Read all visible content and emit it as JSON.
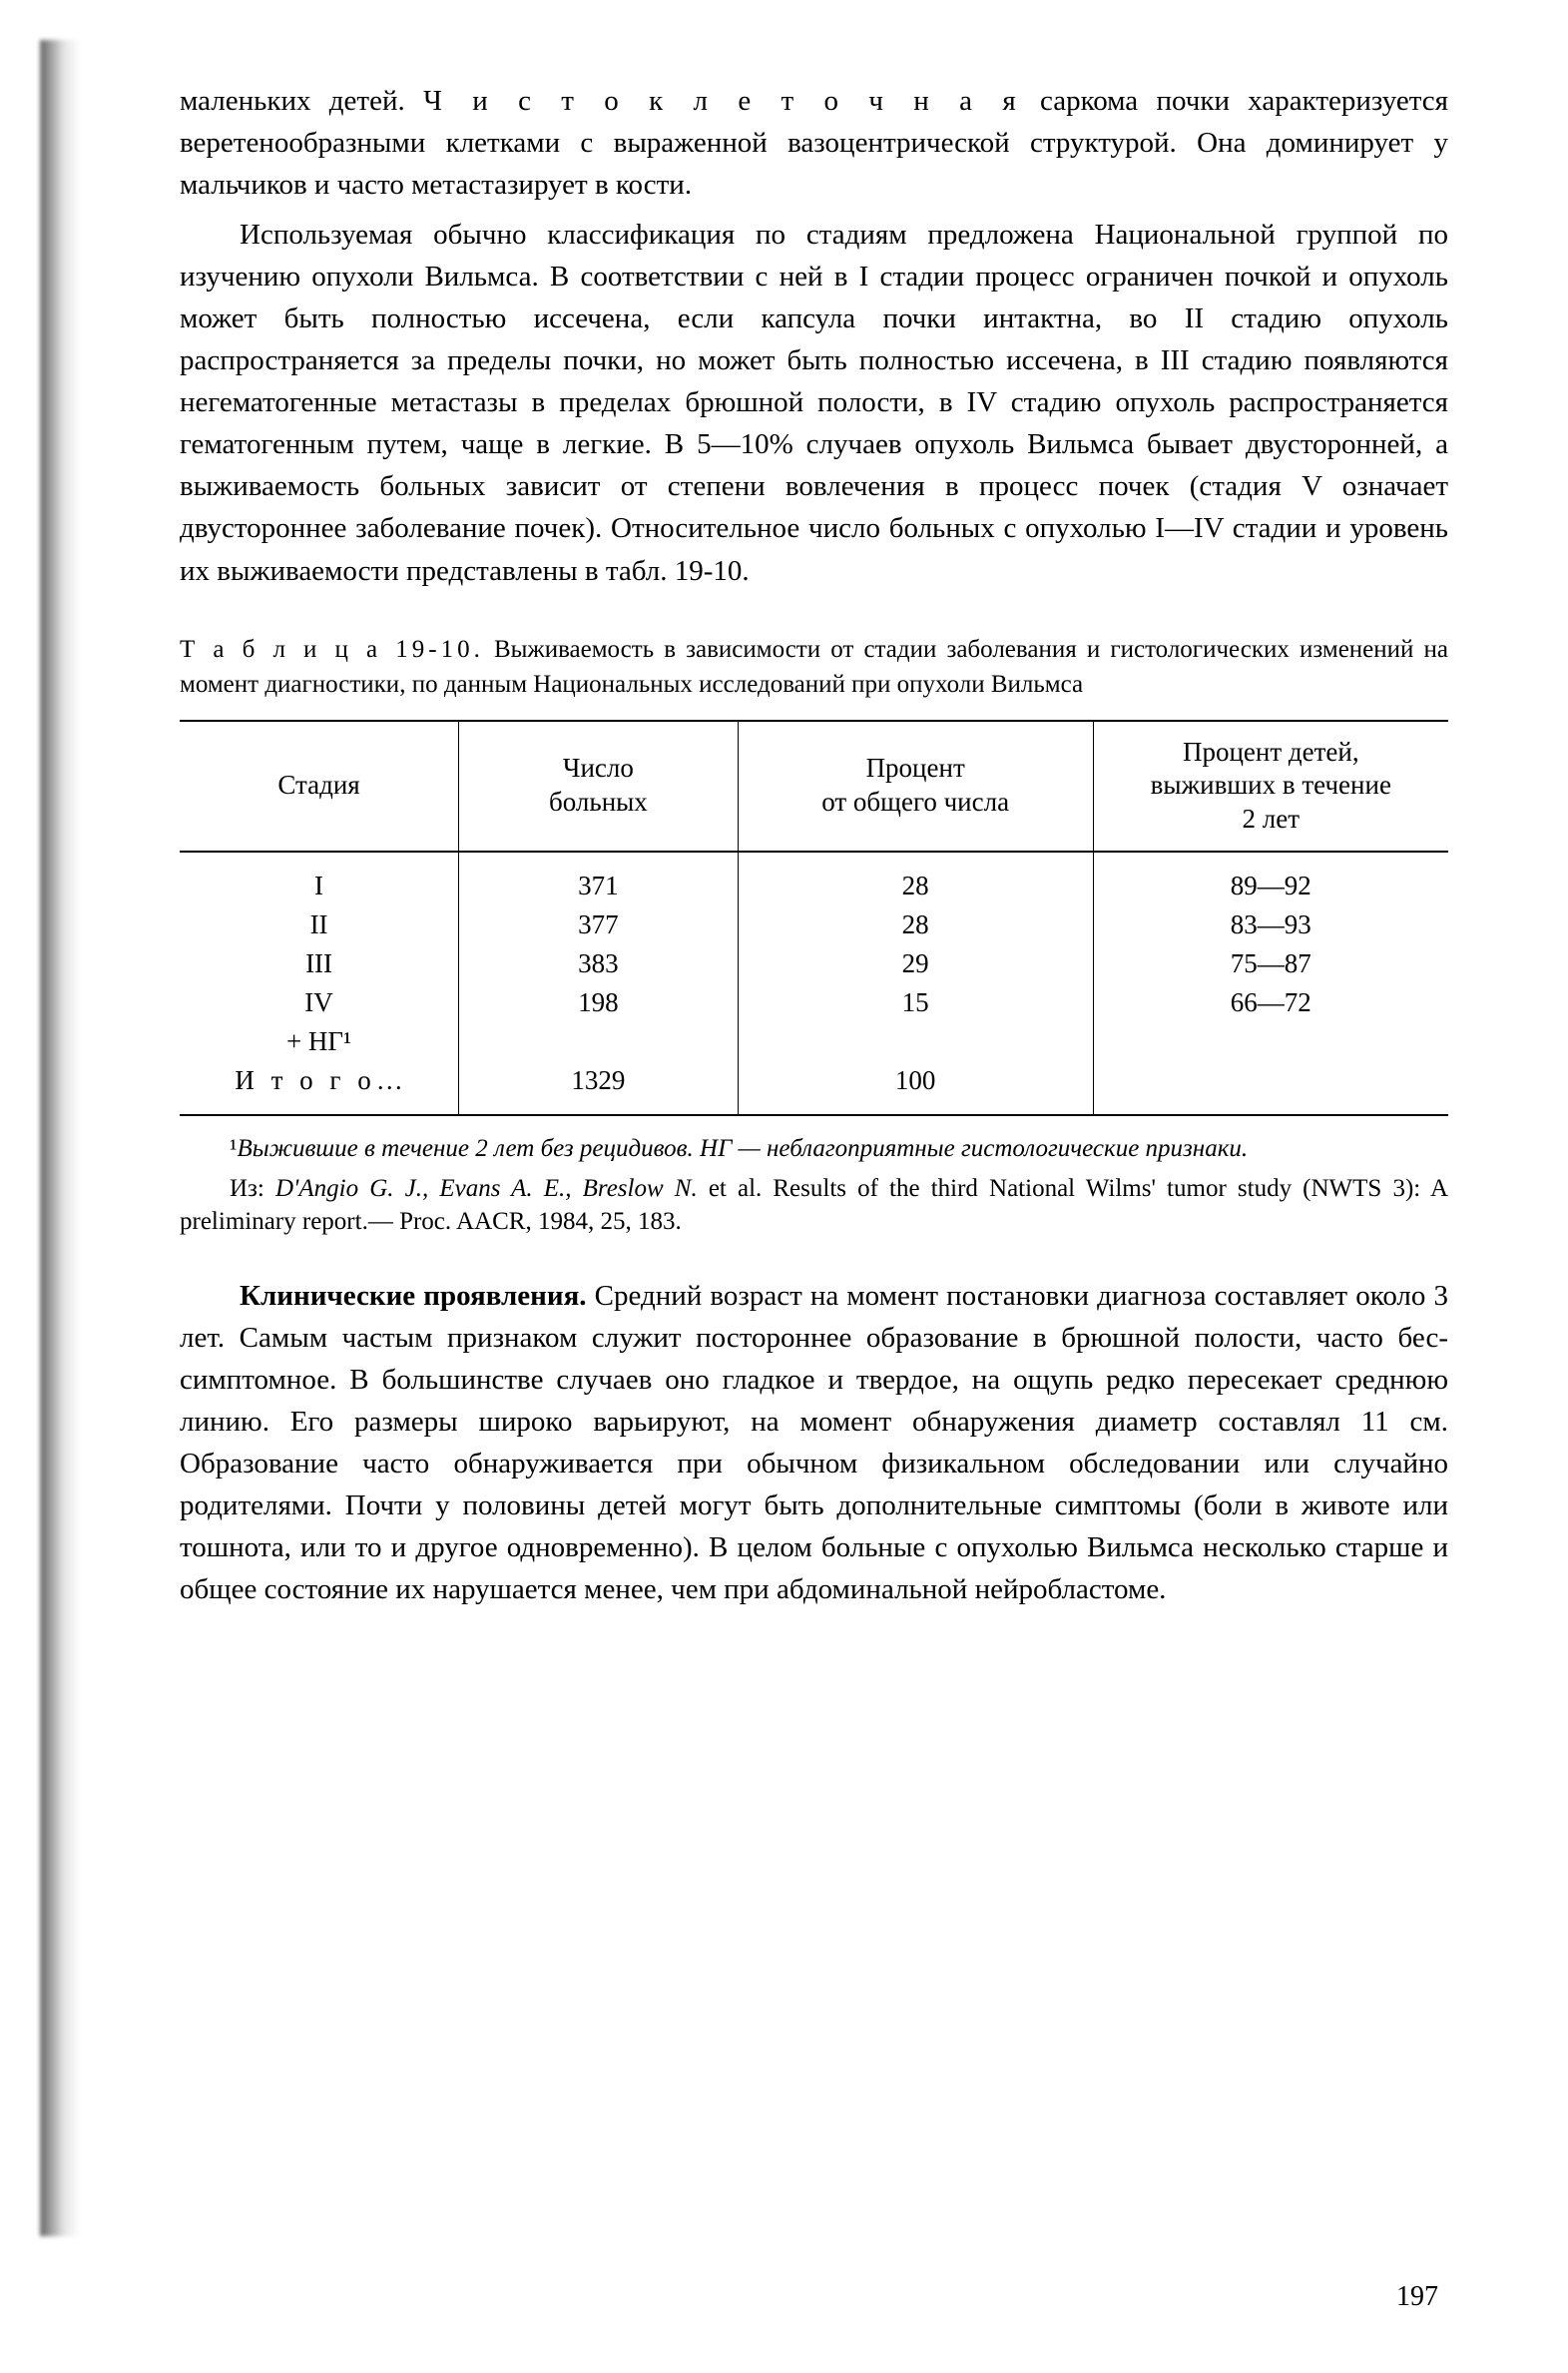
{
  "page_number": "197",
  "colors": {
    "bg": "#ffffff",
    "text": "#000000",
    "rule": "#000000"
  },
  "typography": {
    "body_pt": 29,
    "small_pt": 25,
    "family": "Times New Roman"
  },
  "paragraphs": {
    "p1_a": "маленьких детей. ",
    "p1_spaced": "Ч и с т о к л е т о ч н а я",
    "p1_b": " саркома почки характери­зуется веретенообразными клетками с выраженной вазоцентриче­ской структурой. Она доминирует у мальчиков и часто метастази­рует в  кости.",
    "p2": "Используемая обычно классификация по стадиям предложена Национальной группой по изучению опухоли Вильмса. В соответ­ствии с ней в I стадии процесс ограничен почкой и опухоль может быть полностью иссечена, если капсула почки интактна, во II ста­дию опухоль распространяется за пределы почки, но может быть полностью иссечена, в III стадию появляются негематогенные метастазы в пределах брюшной полости, в IV стадию опухоль распространяется гематогенным путем, чаще в легкие. В 5—10% случаев опухоль Вильмса бывает двусторонней, а выживаемость больных зависит от степени вовлечения в процесс почек (стадия V означает двустороннее заболевание почек). Относительное число больных с опухолью I—IV стадии и уровень их выживаемости представлены  в  табл.  19-10.",
    "p3_a": "Клинические проявления.",
    "p3_b": " Средний возраст на момент поста­новки диагноза составляет около 3 лет. Самым частым признаком служит постороннее образование в брюшной полости, часто бес­симптомное. В большинстве случаев оно гладкое и твердое, на ощупь редко пересекает среднюю линию. Его размеры широко варьируют, на момент обнаружения диаметр составлял 11 см. Образование часто обнаруживается при обычном физикальном обследовании или случайно родителями. Почти у половины детей могут быть дополнительные симптомы (боли в животе или тошнота, или то и другое одновременно). В целом больные с опу­холью Вильмса несколько старше и общее состояние их нару­шается  менее,  чем  при  абдоминальной  нейробластоме."
  },
  "table": {
    "caption_lead": "Т а б л и ц а 19-10.",
    "caption_rest": " Выживаемость в зависимости от стадии заболевания и гистологи­ческих изменений на момент диагностики, по данным Национальных исследований при  опухоли  Вильмса",
    "columns": [
      "Стадия",
      "Число\nбольных",
      "Процент\nот  общего  числа",
      "Процент  детей,\nвыживших  в  течение\n2  лет"
    ],
    "col_widths_pct": [
      22,
      22,
      28,
      28
    ],
    "rows": [
      [
        "I",
        "371",
        "28",
        "89—92"
      ],
      [
        "II",
        "377",
        "28",
        "83—93"
      ],
      [
        "III",
        "383",
        "29",
        "75—87"
      ],
      [
        "IV",
        "198",
        "15",
        "66—72"
      ],
      [
        "+ НГ¹",
        "",
        "",
        ""
      ]
    ],
    "total_row": {
      "label_spaced": "И т о г о",
      "label_rest": "…",
      "n": "1329",
      "pct": "100",
      "surv": ""
    }
  },
  "footnote": {
    "superscript": "¹",
    "text_i": "Выжившие в течение 2 лет без рецидивов. НГ — неблагоприятные гистологические при­знаки."
  },
  "reference": {
    "lead": "Из: ",
    "authors_i": "D'Angio G. J., Evans A. E., Breslow N.",
    "rest": " et al. Results of the third National Wilms' tumor study (NWTS 3): A preliminary report.— Proc. AACR, 1984, 25, 183."
  }
}
